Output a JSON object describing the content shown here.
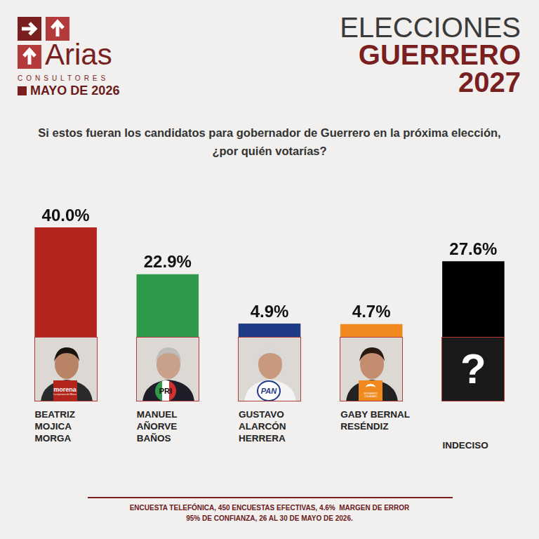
{
  "header": {
    "brand": "Arias",
    "brand_sub": "CONSULTORES",
    "date": "MAYO DE 2026",
    "title_lines": [
      "ELECCIONES",
      "GUERRERO",
      "2027"
    ]
  },
  "chart_data": {
    "type": "bar",
    "title": "Si estos fueran los candidatos para gobernador de Guerrero en la próxima elección, ¿por quién votarías?",
    "categories": [
      "BEATRIZ MOJICA MORGA",
      "MANUEL AÑORVE BAÑOS",
      "GUSTAVO ALARCÓN HERRERA",
      "GABY BERNAL RESÉNDIZ",
      "INDECISO"
    ],
    "values": [
      40.0,
      22.9,
      4.9,
      4.7,
      27.6
    ],
    "value_labels": [
      "40.0%",
      "22.9%",
      "4.9%",
      "4.7%",
      "27.6%"
    ],
    "colors": [
      "#b3241c",
      "#2f9a4a",
      "#1f3b87",
      "#f08a1e",
      "#000000"
    ],
    "ylim": [
      0,
      40
    ],
    "grid": false,
    "tick_labels": false,
    "data_labels": true
  },
  "logos": [
    {
      "text": "morena",
      "subtext": "La esperanza de México"
    },
    {
      "text": "PRI"
    },
    {
      "text": "PAN"
    },
    {
      "text": "MOVIMIENTO CIUDADANO"
    },
    {
      "text": "?"
    }
  ],
  "footer": [
    "ENCUESTA TELEFÓNICA, 450 ENCUESTAS EFECTIVAS, 4.6%  MARGEN DE ERROR",
    "95% DE CONFIANZA, 26 AL 30 DE MAYO DE 2026."
  ]
}
